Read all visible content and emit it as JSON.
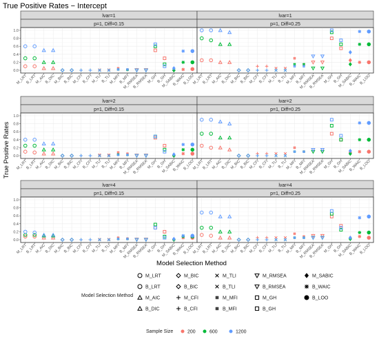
{
  "chart_data": {
    "type": "scatter",
    "title": "True Positive Rates − Intercept",
    "xlabel": "Model Selection Method",
    "ylabel": "True Positive Rates",
    "ylim": [
      0,
      1
    ],
    "yticks": [
      "0.0",
      "0.2",
      "0.4",
      "0.6",
      "0.8",
      "1.0"
    ],
    "grid": true,
    "categories": [
      "M_LRT",
      "B_LRT",
      "M_AIC",
      "B_DIC",
      "M_BIC",
      "B_BIC",
      "M_CFI",
      "B_CFI",
      "M_TLI",
      "B_TLI",
      "M_MFI",
      "B_MFI",
      "M_RMSEA",
      "B_RMSEA",
      "M_GH",
      "B_GH",
      "M_SABIC",
      "B_WAIC",
      "B_LOO"
    ],
    "shapes": {
      "M_LRT": "circle",
      "B_LRT": "circle",
      "M_AIC": "triangle",
      "B_DIC": "triangle",
      "M_BIC": "diamond",
      "B_BIC": "diamond",
      "M_CFI": "plus",
      "B_CFI": "plus",
      "M_TLI": "cross",
      "B_TLI": "cross",
      "M_MFI": "hash",
      "B_MFI": "hash",
      "M_RMSEA": "triangle-down",
      "B_RMSEA": "triangle-down",
      "M_GH": "square",
      "B_GH": "square",
      "M_SABIC": "diamond-filled",
      "B_WAIC": "asterisk",
      "B_LOO": "dot"
    },
    "series_colors": {
      "200": "#F8766D",
      "600": "#00BA38",
      "1200": "#619CFF"
    },
    "legend": {
      "title": "Model Selection Method",
      "items": [
        {
          "label": "M_LRT",
          "shape": "circle"
        },
        {
          "label": "M_BIC",
          "shape": "diamond"
        },
        {
          "label": "M_TLI",
          "shape": "cross"
        },
        {
          "label": "M_RMSEA",
          "shape": "triangle-down"
        },
        {
          "label": "M_SABIC",
          "shape": "diamond-filled"
        },
        {
          "label": "B_LRT",
          "shape": "circle"
        },
        {
          "label": "B_BIC",
          "shape": "diamond"
        },
        {
          "label": "B_TLI",
          "shape": "cross"
        },
        {
          "label": "B_RMSEA",
          "shape": "triangle-down"
        },
        {
          "label": "B_WAIC",
          "shape": "asterisk"
        },
        {
          "label": "M_AIC",
          "shape": "triangle"
        },
        {
          "label": "M_CFI",
          "shape": "plus"
        },
        {
          "label": "M_MFI",
          "shape": "hash"
        },
        {
          "label": "M_GH",
          "shape": "square"
        },
        {
          "label": "B_LOO",
          "shape": "dot"
        },
        {
          "label": "B_DIC",
          "shape": "triangle"
        },
        {
          "label": "B_CFI",
          "shape": "plus"
        },
        {
          "label": "B_MFI",
          "shape": "hash"
        },
        {
          "label": "B_GH",
          "shape": "square"
        }
      ]
    },
    "size_legend": {
      "title": "Sample Size",
      "items": [
        {
          "label": "200",
          "color": "#F8766D"
        },
        {
          "label": "600",
          "color": "#00BA38"
        },
        {
          "label": "1200",
          "color": "#619CFF"
        }
      ]
    },
    "panels": [
      {
        "strip_top": "lvar=1",
        "strip_sub": "p=1, Diff=0.15",
        "series": [
          {
            "name": "200",
            "values": [
              0.1,
              0.1,
              0.05,
              0.05,
              0.0,
              0.0,
              0.0,
              0.0,
              0.01,
              0.01,
              0.05,
              0.02,
              0.01,
              0.01,
              0.5,
              0.3,
              0.0,
              0.02,
              0.03
            ]
          },
          {
            "name": "600",
            "values": [
              0.3,
              0.3,
              0.2,
              0.2,
              0.0,
              0.0,
              0.0,
              0.0,
              0.0,
              0.0,
              0.02,
              0.01,
              0.0,
              0.0,
              0.6,
              0.15,
              0.0,
              0.2,
              0.2
            ]
          },
          {
            "name": "1200",
            "values": [
              0.6,
              0.6,
              0.5,
              0.5,
              0.0,
              0.0,
              0.0,
              0.0,
              0.0,
              0.0,
              0.02,
              0.02,
              0.0,
              0.0,
              0.65,
              0.1,
              0.05,
              0.48,
              0.48
            ]
          }
        ]
      },
      {
        "strip_top": "lvar=1",
        "strip_sub": "p=1, Diff=0.25",
        "series": [
          {
            "name": "200",
            "values": [
              0.25,
              0.25,
              0.2,
              0.2,
              0.0,
              0.0,
              0.1,
              0.1,
              0.05,
              0.05,
              0.3,
              0.15,
              0.2,
              0.2,
              0.8,
              0.55,
              0.25,
              0.2,
              0.2
            ]
          },
          {
            "name": "600",
            "values": [
              0.8,
              0.75,
              0.65,
              0.65,
              0.0,
              0.0,
              0.0,
              0.0,
              0.0,
              0.0,
              0.15,
              0.15,
              0.05,
              0.05,
              0.95,
              0.65,
              0.15,
              0.65,
              0.65
            ]
          },
          {
            "name": "1200",
            "values": [
              1.0,
              1.0,
              1.0,
              0.95,
              0.0,
              0.0,
              0.0,
              0.0,
              0.0,
              0.0,
              0.1,
              0.1,
              0.35,
              0.35,
              1.0,
              0.75,
              0.45,
              0.97,
              0.97
            ]
          }
        ]
      },
      {
        "strip_top": "lvar=2",
        "strip_sub": "p=1, Diff=0.15",
        "series": [
          {
            "name": "200",
            "values": [
              0.1,
              0.08,
              0.05,
              0.05,
              0.0,
              0.0,
              0.0,
              0.0,
              0.02,
              0.02,
              0.08,
              0.05,
              0.01,
              0.01,
              0.45,
              0.25,
              0.0,
              0.05,
              0.05
            ]
          },
          {
            "name": "600",
            "values": [
              0.25,
              0.25,
              0.15,
              0.15,
              0.0,
              0.0,
              0.0,
              0.0,
              0.0,
              0.0,
              0.03,
              0.02,
              0.0,
              0.0,
              0.48,
              0.15,
              0.0,
              0.15,
              0.15
            ]
          },
          {
            "name": "1200",
            "values": [
              0.4,
              0.4,
              0.3,
              0.3,
              0.0,
              0.0,
              0.0,
              0.0,
              0.0,
              0.0,
              0.02,
              0.02,
              0.0,
              0.0,
              0.48,
              0.1,
              0.03,
              0.28,
              0.28
            ]
          }
        ]
      },
      {
        "strip_top": "lvar=2",
        "strip_sub": "p=1, Diff=0.25",
        "series": [
          {
            "name": "200",
            "values": [
              0.25,
              0.2,
              0.2,
              0.15,
              0.0,
              0.0,
              0.05,
              0.05,
              0.05,
              0.05,
              0.2,
              0.1,
              0.15,
              0.15,
              0.55,
              0.4,
              0.08,
              0.1,
              0.1
            ]
          },
          {
            "name": "600",
            "values": [
              0.55,
              0.55,
              0.45,
              0.45,
              0.0,
              0.0,
              0.0,
              0.0,
              0.0,
              0.0,
              0.1,
              0.1,
              0.1,
              0.1,
              0.75,
              0.4,
              0.05,
              0.4,
              0.4
            ]
          },
          {
            "name": "1200",
            "values": [
              0.9,
              0.9,
              0.85,
              0.8,
              0.0,
              0.0,
              0.0,
              0.0,
              0.0,
              0.0,
              0.1,
              0.1,
              0.15,
              0.15,
              0.9,
              0.5,
              0.12,
              0.82,
              0.82
            ]
          }
        ]
      },
      {
        "strip_top": "lvar=4",
        "strip_sub": "p=1, Diff=0.15",
        "series": [
          {
            "name": "200",
            "values": [
              0.08,
              0.08,
              0.05,
              0.05,
              0.0,
              0.0,
              0.0,
              0.0,
              0.01,
              0.01,
              0.05,
              0.03,
              0.01,
              0.01,
              0.3,
              0.2,
              0.0,
              0.05,
              0.05
            ]
          },
          {
            "name": "600",
            "values": [
              0.12,
              0.12,
              0.1,
              0.1,
              0.0,
              0.0,
              0.0,
              0.0,
              0.0,
              0.0,
              0.02,
              0.02,
              0.0,
              0.0,
              0.38,
              0.08,
              0.0,
              0.08,
              0.08
            ]
          },
          {
            "name": "1200",
            "values": [
              0.2,
              0.18,
              0.12,
              0.12,
              0.0,
              0.0,
              0.0,
              0.0,
              0.0,
              0.0,
              0.02,
              0.02,
              0.0,
              0.0,
              0.3,
              0.05,
              0.02,
              0.1,
              0.1
            ]
          }
        ]
      },
      {
        "strip_top": "lvar=4",
        "strip_sub": "p=1, Diff=0.25",
        "series": [
          {
            "name": "200",
            "values": [
              0.12,
              0.1,
              0.05,
              0.05,
              0.0,
              0.0,
              0.05,
              0.05,
              0.05,
              0.05,
              0.15,
              0.08,
              0.1,
              0.1,
              0.58,
              0.35,
              0.05,
              0.08,
              0.05
            ]
          },
          {
            "name": "600",
            "values": [
              0.3,
              0.3,
              0.2,
              0.2,
              0.0,
              0.0,
              0.0,
              0.0,
              0.0,
              0.0,
              0.05,
              0.05,
              0.05,
              0.05,
              0.65,
              0.25,
              0.02,
              0.18,
              0.18
            ]
          },
          {
            "name": "1200",
            "values": [
              0.68,
              0.68,
              0.58,
              0.58,
              0.0,
              0.0,
              0.0,
              0.0,
              0.0,
              0.0,
              0.05,
              0.05,
              0.05,
              0.05,
              0.72,
              0.3,
              0.05,
              0.55,
              0.58
            ]
          }
        ]
      }
    ]
  }
}
